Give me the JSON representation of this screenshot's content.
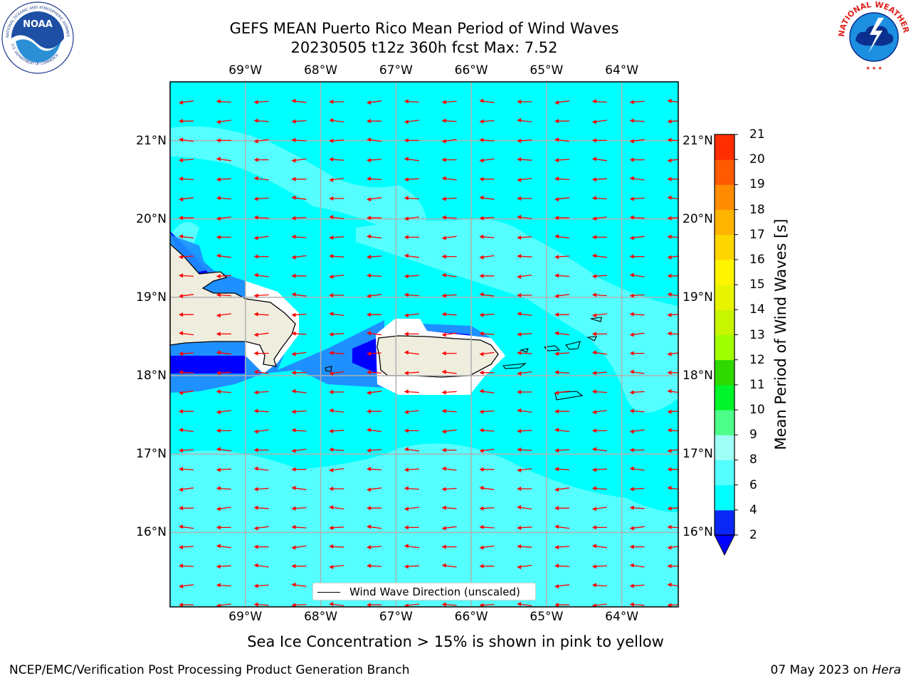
{
  "title": {
    "line1": "GEFS MEAN Puerto Rico Mean Period of Wind Waves",
    "line2": "20230505 t12z 360h fcst   Max: 7.52"
  },
  "logos": {
    "left": "noaa-logo",
    "right": "national-weather-service-logo"
  },
  "map": {
    "lon_ticks_top": [
      "69°W",
      "68°W",
      "67°W",
      "66°W",
      "65°W",
      "64°W"
    ],
    "lon_ticks_bottom": [
      "69°W",
      "68°W",
      "67°W",
      "66°W",
      "65°W",
      "64°W"
    ],
    "lat_ticks_left": [
      "21°N",
      "20°N",
      "19°N",
      "18°N",
      "17°N",
      "16°N"
    ],
    "lat_ticks_right": [
      "21°N",
      "20°N",
      "19°N",
      "18°N",
      "17°N",
      "16°N"
    ],
    "lon_values": [
      -69,
      -68,
      -67,
      -66,
      -65,
      -64
    ],
    "lat_values": [
      21,
      20,
      19,
      18,
      17,
      16
    ],
    "extent": {
      "lon": [
        -70,
        -63.25
      ],
      "lat": [
        15.05,
        21.75
      ]
    },
    "land_color": "#efedde",
    "ocean_color": "#00ffff",
    "arrow_color": "#ff0000",
    "gridline_color": "#b0b0b0",
    "arrow_direction": "westward (east-to-west)",
    "legend_label": "Wind Wave Direction (unscaled)"
  },
  "colorbar": {
    "title": "Mean Period of Wind Waves [s]",
    "tick_labels": [
      "21",
      "20",
      "19",
      "18",
      "17",
      "16",
      "15",
      "14",
      "13",
      "12",
      "11",
      "10",
      "9",
      "8",
      "6",
      "4",
      "2"
    ],
    "levels": [
      2,
      4,
      6,
      8,
      9,
      10,
      11,
      12,
      13,
      14,
      15,
      16,
      17,
      18,
      19,
      20,
      21
    ],
    "colors": [
      "#0b27f5",
      "#00ffff",
      "#55ffff",
      "#9dfff5",
      "#4dff8a",
      "#00f52a",
      "#2ed800",
      "#a0ff00",
      "#c8f500",
      "#e8f500",
      "#fff500",
      "#ffd700",
      "#ffb400",
      "#ff8c00",
      "#ff5a00",
      "#ff2d00",
      "#ff0000"
    ],
    "under_color": "#0000ff",
    "extend": "min"
  },
  "footer": {
    "sea_ice_note": "Sea Ice Concentration > 15% is shown in pink to yellow",
    "credit": "NCEP/EMC/Verification Post Processing Product Generation Branch",
    "date_prefix": "07 May 2023 on ",
    "machine": "Hera"
  }
}
